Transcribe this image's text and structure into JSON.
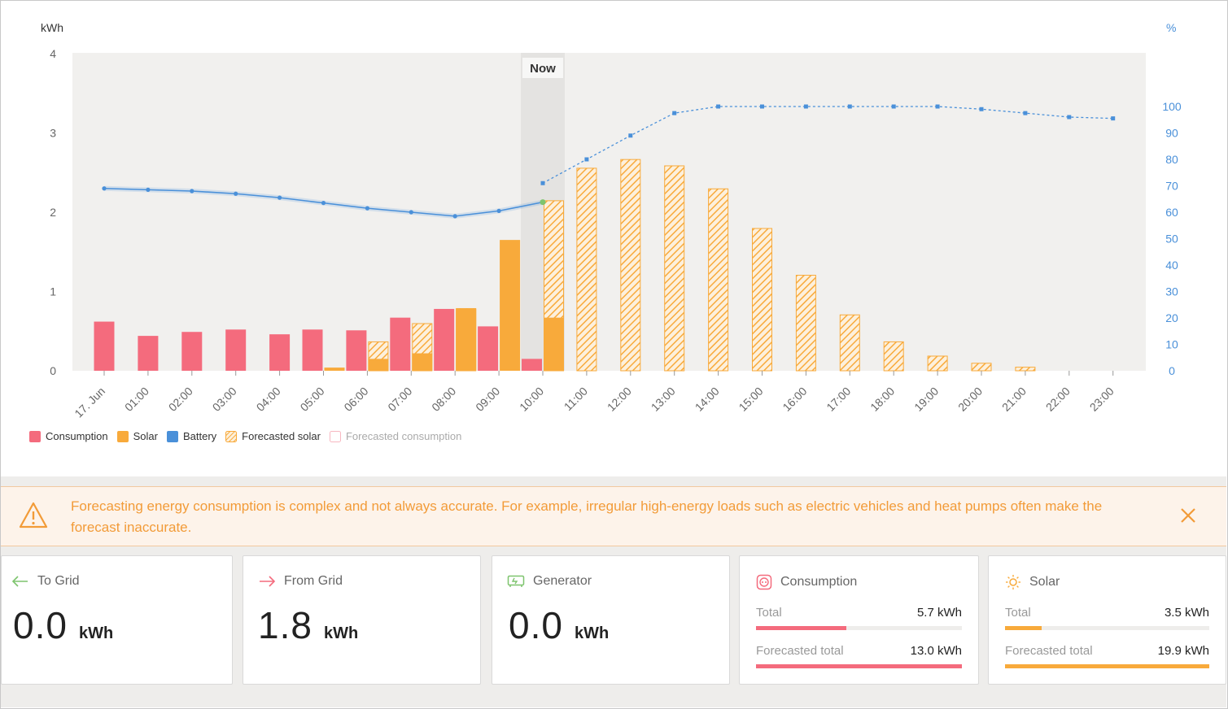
{
  "chart": {
    "y_left_unit": "kWh",
    "y_right_unit": "%",
    "now_label": "Now"
  },
  "chart_data": {
    "type": "bar",
    "x_tick_labels": [
      "17. Jun",
      "01:00",
      "02:00",
      "03:00",
      "04:00",
      "05:00",
      "06:00",
      "07:00",
      "08:00",
      "09:00",
      "10:00",
      "11:00",
      "12:00",
      "13:00",
      "14:00",
      "15:00",
      "16:00",
      "17:00",
      "18:00",
      "19:00",
      "20:00",
      "21:00",
      "22:00",
      "23:00"
    ],
    "y_left_ticks": [
      "0",
      "1",
      "2",
      "3",
      "4"
    ],
    "y_left_range": [
      0,
      4
    ],
    "y_right_ticks": [
      "0",
      "10",
      "20",
      "30",
      "40",
      "50",
      "60",
      "70",
      "80",
      "90",
      "100"
    ],
    "y_right_range": [
      0,
      120
    ],
    "now_hour_index": 10,
    "series": [
      {
        "name": "Consumption",
        "type": "bar",
        "color": "#f46b7d",
        "values": [
          0.62,
          0.44,
          0.49,
          0.52,
          0.46,
          0.52,
          0.51,
          0.67,
          0.78,
          0.56,
          0.15,
          null,
          null,
          null,
          null,
          null,
          null,
          null,
          null,
          null,
          null,
          null,
          null,
          null
        ]
      },
      {
        "name": "Solar",
        "type": "bar",
        "color": "#f8aa3b",
        "values": [
          0,
          0,
          0,
          0,
          0,
          0.04,
          0.15,
          0.22,
          0.78,
          1.65,
          0.67,
          null,
          null,
          null,
          null,
          null,
          null,
          null,
          null,
          null,
          null,
          null,
          null,
          null
        ]
      },
      {
        "name": "Forecasted solar",
        "type": "bar-hatched",
        "color": "#f8aa3b",
        "values": [
          null,
          null,
          null,
          null,
          null,
          null,
          0.37,
          0.6,
          0.79,
          null,
          2.15,
          2.56,
          2.67,
          2.59,
          2.3,
          1.8,
          1.21,
          0.71,
          0.37,
          0.19,
          0.1,
          0.05,
          null,
          null
        ]
      },
      {
        "name": "Battery",
        "type": "line",
        "axis": "right",
        "color": "#4a90d9",
        "values": [
          69,
          68.5,
          68,
          67,
          65.5,
          63.5,
          61.5,
          60,
          58.5,
          60.5,
          63.8,
          null,
          null,
          null,
          null,
          null,
          null,
          null,
          null,
          null,
          null,
          null,
          null,
          null
        ]
      },
      {
        "name": "Battery forecast",
        "type": "line-dashed",
        "axis": "right",
        "color": "#4a90d9",
        "values": [
          null,
          null,
          null,
          null,
          null,
          null,
          null,
          null,
          null,
          null,
          71,
          80,
          89,
          97.5,
          100,
          100,
          100,
          100,
          100,
          100,
          99,
          97.5,
          96,
          95.5
        ]
      }
    ]
  },
  "legend": [
    {
      "label": "Consumption",
      "color": "#f46b7d",
      "style": "solid"
    },
    {
      "label": "Solar",
      "color": "#f8aa3b",
      "style": "solid"
    },
    {
      "label": "Battery",
      "color": "#4a90d9",
      "style": "solid"
    },
    {
      "label": "Forecasted solar",
      "color": "#f8aa3b",
      "style": "hatched"
    },
    {
      "label": "Forecasted consumption",
      "color": "#f46b7d",
      "style": "outline"
    }
  ],
  "warning": {
    "text": "Forecasting energy consumption is complex and not always accurate. For example, irregular high-energy loads such as electric vehicles and heat pumps often make the forecast inaccurate.",
    "icon": "warning-triangle-icon",
    "close_icon": "close-icon"
  },
  "cards": {
    "to_grid": {
      "title": "To Grid",
      "value": "0.0",
      "unit": "kWh",
      "icon": "arrow-left-icon",
      "icon_color": "#7ec46e"
    },
    "from_grid": {
      "title": "From Grid",
      "value": "1.8",
      "unit": "kWh",
      "icon": "arrow-right-icon",
      "icon_color": "#f46b7d"
    },
    "generator": {
      "title": "Generator",
      "value": "0.0",
      "unit": "kWh",
      "icon": "generator-icon",
      "icon_color": "#7ec46e"
    },
    "consumption": {
      "title": "Consumption",
      "icon": "plug-icon",
      "color": "#f46b7d",
      "total_label": "Total",
      "total_value": "5.7 kWh",
      "total_fraction": 0.44,
      "forecast_label": "Forecasted total",
      "forecast_value": "13.0 kWh",
      "forecast_fraction": 1.0
    },
    "solar": {
      "title": "Solar",
      "icon": "sun-icon",
      "color": "#f8aa3b",
      "total_label": "Total",
      "total_value": "3.5 kWh",
      "total_fraction": 0.18,
      "forecast_label": "Forecasted total",
      "forecast_value": "19.9 kWh",
      "forecast_fraction": 1.0
    }
  }
}
